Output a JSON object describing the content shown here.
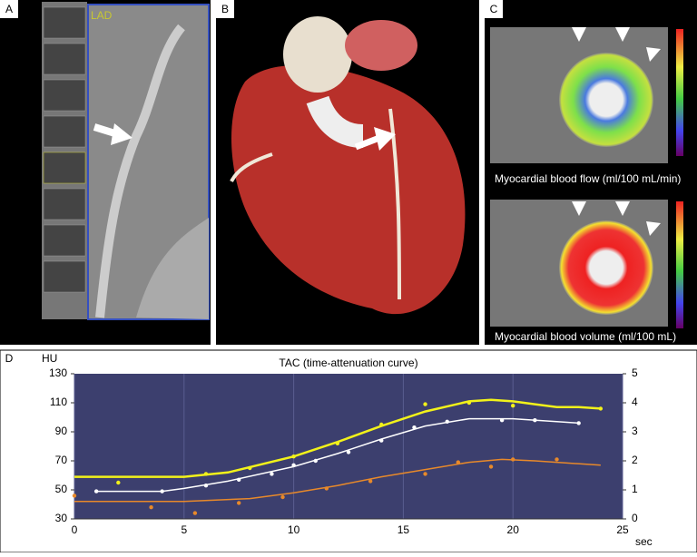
{
  "panels": {
    "a": {
      "label": "A",
      "vessel": "LAD"
    },
    "b": {
      "label": "B"
    },
    "c": {
      "label": "C",
      "top_caption": "Myocardial blood flow (ml/100 mL/min)",
      "bottom_caption": "Myocardial blood volume (ml/100 mL)"
    },
    "d": {
      "label": "D"
    }
  },
  "chart_data": {
    "type": "line",
    "title": "TAC (time-attenuation curve)",
    "y_label": "HU",
    "x_label": "sec",
    "xlim": [
      0,
      25
    ],
    "xticks": [
      0,
      5,
      10,
      15,
      20,
      25
    ],
    "ylim": [
      30,
      130
    ],
    "yticks": [
      30,
      50,
      70,
      90,
      110,
      130
    ],
    "y2lim": [
      0,
      5
    ],
    "y2ticks": [
      0,
      1,
      2,
      3,
      4,
      5
    ],
    "grid": true,
    "series": [
      {
        "color": "#f2f21a",
        "x": [
          0,
          5,
          7,
          10,
          12,
          14,
          16,
          18,
          19,
          20,
          21,
          22,
          23,
          24
        ],
        "values": [
          59,
          59,
          62,
          73,
          83,
          94,
          104,
          111,
          112,
          111,
          109,
          107,
          107,
          106
        ],
        "points_x": [
          2,
          6,
          8,
          10,
          12,
          14,
          16,
          18,
          20,
          24
        ],
        "points": [
          55,
          61,
          65,
          73,
          82,
          95,
          109,
          110,
          108,
          106
        ]
      },
      {
        "color": "#ffffff",
        "x": [
          1,
          4,
          5,
          7,
          10,
          12,
          14,
          16,
          18,
          20,
          22,
          23
        ],
        "values": [
          49,
          49,
          51,
          56,
          66,
          75,
          85,
          94,
          99,
          99,
          97,
          96
        ],
        "points_x": [
          1,
          4,
          6,
          7.5,
          9,
          10,
          11,
          12.5,
          14,
          15.5,
          17,
          19.5,
          21,
          23
        ],
        "points": [
          49,
          49,
          53,
          57,
          61,
          67,
          70,
          76,
          84,
          93,
          97,
          98,
          98,
          96
        ]
      },
      {
        "color": "#e8892a",
        "x": [
          0,
          5,
          8,
          10,
          12,
          14,
          16,
          18,
          19.5,
          21,
          22,
          24
        ],
        "values": [
          42,
          42,
          44,
          48,
          53,
          59,
          64,
          69,
          71,
          70,
          69,
          67
        ],
        "points_x": [
          0,
          3.5,
          5.5,
          7.5,
          9.5,
          11.5,
          13.5,
          16,
          17.5,
          19,
          20,
          22
        ],
        "points": [
          46,
          38,
          34,
          41,
          45,
          51,
          56,
          61,
          69,
          66,
          71,
          71
        ]
      }
    ]
  }
}
